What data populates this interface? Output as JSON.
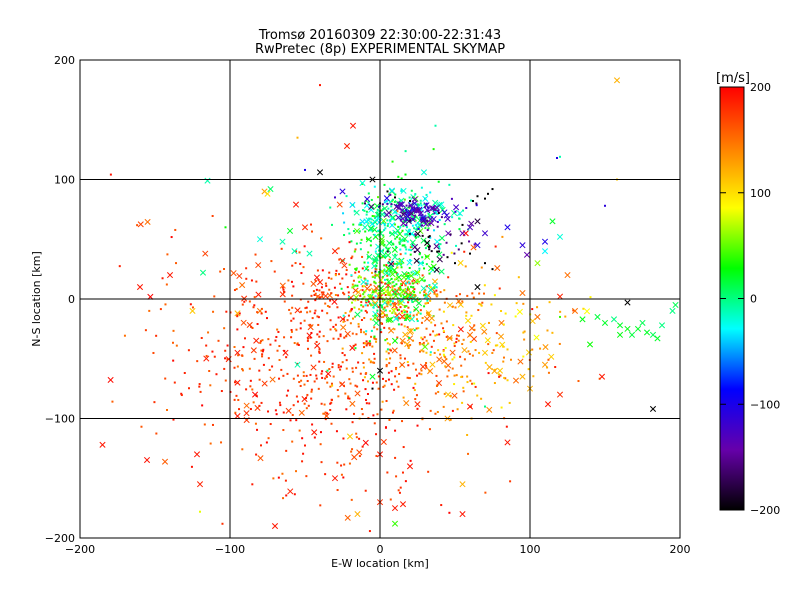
{
  "chart_data": {
    "type": "scatter",
    "title": "Tromsø 20160309 22:30:00-22:31:43",
    "subtitle": "RwPretec (8p) EXPERIMENTAL SKYMAP",
    "xlabel": "E-W location [km]",
    "ylabel": "N-S location [km]",
    "xlim": [
      -200,
      200
    ],
    "ylim": [
      -200,
      200
    ],
    "x_ticks": [
      -200,
      -100,
      0,
      100,
      200
    ],
    "y_ticks": [
      -200,
      -100,
      0,
      100,
      200
    ],
    "x_tick_labels": [
      "−200",
      "−100",
      "0",
      "100",
      "200"
    ],
    "y_tick_labels": [
      "−200",
      "−100",
      "0",
      "100",
      "200"
    ],
    "gridlines": [
      -100,
      0,
      100
    ],
    "grid": true,
    "markers": [
      "cross",
      "dot"
    ],
    "colorbar": {
      "label": "[m/s]",
      "range": [
        -200,
        200
      ],
      "ticks": [
        200,
        100,
        0,
        -100,
        -200
      ],
      "tick_labels": [
        "200",
        "100",
        "0",
        "−100",
        "−200"
      ],
      "colors": [
        "#000000",
        "#6600aa",
        "#0000ff",
        "#00ffff",
        "#00ff00",
        "#ffff00",
        "#ff7f00",
        "#ff0000"
      ]
    },
    "points": [
      {
        "x": -40,
        "y": 179,
        "v": 190,
        "m": "dot"
      },
      {
        "x": -18,
        "y": 145,
        "v": 190,
        "m": "cross"
      },
      {
        "x": -22,
        "y": 128,
        "v": 185,
        "m": "cross"
      },
      {
        "x": -55,
        "y": 135,
        "v": 120,
        "m": "dot"
      },
      {
        "x": 158,
        "y": 183,
        "v": 120,
        "m": "cross"
      },
      {
        "x": 37,
        "y": 145,
        "v": -10,
        "m": "dot"
      },
      {
        "x": 120,
        "y": 119,
        "v": -10,
        "m": "dot"
      },
      {
        "x": 118,
        "y": 118,
        "v": -100,
        "m": "dot"
      },
      {
        "x": 158,
        "y": 100,
        "v": 110,
        "m": "dot"
      },
      {
        "x": -50,
        "y": 108,
        "v": -100,
        "m": "dot"
      },
      {
        "x": -40,
        "y": 106,
        "v": -200,
        "m": "cross"
      },
      {
        "x": -5,
        "y": 100,
        "v": -200,
        "m": "cross"
      },
      {
        "x": -115,
        "y": 99,
        "v": -10,
        "m": "cross"
      },
      {
        "x": -77,
        "y": 90,
        "v": 130,
        "m": "cross"
      },
      {
        "x": -75,
        "y": 88,
        "v": 100,
        "m": "cross"
      },
      {
        "x": -73,
        "y": 92,
        "v": 5,
        "m": "cross"
      },
      {
        "x": 150,
        "y": 78,
        "v": -110,
        "m": "dot"
      },
      {
        "x": -103,
        "y": 60,
        "v": 30,
        "m": "dot"
      },
      {
        "x": -50,
        "y": 60,
        "v": 180,
        "m": "cross"
      },
      {
        "x": -56,
        "y": 79,
        "v": 190,
        "m": "cross"
      },
      {
        "x": -57,
        "y": 40,
        "v": -10,
        "m": "cross"
      },
      {
        "x": -47,
        "y": 38,
        "v": -10,
        "m": "cross"
      },
      {
        "x": -30,
        "y": 40,
        "v": 185,
        "m": "cross"
      },
      {
        "x": -25,
        "y": 32,
        "v": 185,
        "m": "cross"
      },
      {
        "x": -60,
        "y": 57,
        "v": 20,
        "m": "cross"
      },
      {
        "x": -65,
        "y": 48,
        "v": -10,
        "m": "cross"
      },
      {
        "x": -80,
        "y": 50,
        "v": -20,
        "m": "cross"
      },
      {
        "x": -160,
        "y": 10,
        "v": 190,
        "m": "cross"
      },
      {
        "x": -140,
        "y": 20,
        "v": 190,
        "m": "cross"
      },
      {
        "x": -118,
        "y": 22,
        "v": 0,
        "m": "cross"
      },
      {
        "x": -125,
        "y": -10,
        "v": 110,
        "m": "cross"
      },
      {
        "x": -185,
        "y": -122,
        "v": 190,
        "m": "cross"
      },
      {
        "x": -122,
        "y": -130,
        "v": 190,
        "m": "cross"
      },
      {
        "x": -120,
        "y": -155,
        "v": 185,
        "m": "cross"
      },
      {
        "x": -95,
        "y": -98,
        "v": 190,
        "m": "cross"
      },
      {
        "x": -95,
        "y": -70,
        "v": 190,
        "m": "cross"
      },
      {
        "x": -95,
        "y": -45,
        "v": 190,
        "m": "cross"
      },
      {
        "x": -95,
        "y": -12,
        "v": 120,
        "m": "cross"
      },
      {
        "x": -80,
        "y": -10,
        "v": 150,
        "m": "cross"
      },
      {
        "x": -63,
        "y": -45,
        "v": 190,
        "m": "cross"
      },
      {
        "x": -70,
        "y": -190,
        "v": 190,
        "m": "cross"
      },
      {
        "x": -30,
        "y": -150,
        "v": 190,
        "m": "cross"
      },
      {
        "x": -15,
        "y": -180,
        "v": 120,
        "m": "cross"
      },
      {
        "x": 0,
        "y": -170,
        "v": 180,
        "m": "cross"
      },
      {
        "x": 10,
        "y": -175,
        "v": 190,
        "m": "cross"
      },
      {
        "x": 55,
        "y": -155,
        "v": 120,
        "m": "cross"
      },
      {
        "x": 55,
        "y": -180,
        "v": 190,
        "m": "cross"
      },
      {
        "x": 0,
        "y": -130,
        "v": 190,
        "m": "cross"
      },
      {
        "x": 20,
        "y": -140,
        "v": 190,
        "m": "cross"
      },
      {
        "x": -20,
        "y": -115,
        "v": 110,
        "m": "cross"
      },
      {
        "x": 25,
        "y": -88,
        "v": 180,
        "m": "cross"
      },
      {
        "x": 45,
        "y": -100,
        "v": 130,
        "m": "cross"
      },
      {
        "x": 60,
        "y": -90,
        "v": 190,
        "m": "cross"
      },
      {
        "x": 85,
        "y": -120,
        "v": 190,
        "m": "cross"
      },
      {
        "x": 100,
        "y": -75,
        "v": 120,
        "m": "cross"
      },
      {
        "x": 112,
        "y": -88,
        "v": 190,
        "m": "cross"
      },
      {
        "x": 120,
        "y": -80,
        "v": 180,
        "m": "cross"
      },
      {
        "x": 148,
        "y": -65,
        "v": 190,
        "m": "cross"
      },
      {
        "x": 110,
        "y": -55,
        "v": 130,
        "m": "cross"
      },
      {
        "x": 95,
        "y": -65,
        "v": 120,
        "m": "cross"
      },
      {
        "x": 80,
        "y": -60,
        "v": 110,
        "m": "cross"
      },
      {
        "x": 70,
        "y": -45,
        "v": 110,
        "m": "cross"
      },
      {
        "x": 60,
        "y": -30,
        "v": 150,
        "m": "cross"
      },
      {
        "x": 95,
        "y": 5,
        "v": 150,
        "m": "cross"
      },
      {
        "x": 105,
        "y": -15,
        "v": 150,
        "m": "cross"
      },
      {
        "x": 120,
        "y": 2,
        "v": 185,
        "m": "cross"
      },
      {
        "x": 130,
        "y": -10,
        "v": 150,
        "m": "cross"
      },
      {
        "x": 125,
        "y": 20,
        "v": 150,
        "m": "cross"
      },
      {
        "x": 105,
        "y": 30,
        "v": 60,
        "m": "cross"
      },
      {
        "x": 115,
        "y": 65,
        "v": 20,
        "m": "cross"
      },
      {
        "x": 120,
        "y": 52,
        "v": -20,
        "m": "cross"
      },
      {
        "x": 110,
        "y": 48,
        "v": -100,
        "m": "cross"
      },
      {
        "x": 95,
        "y": 45,
        "v": -110,
        "m": "cross"
      },
      {
        "x": 98,
        "y": 37,
        "v": -140,
        "m": "cross"
      },
      {
        "x": 85,
        "y": 60,
        "v": -100,
        "m": "cross"
      },
      {
        "x": 110,
        "y": 40,
        "v": -30,
        "m": "cross"
      },
      {
        "x": 70,
        "y": 55,
        "v": -120,
        "m": "cross"
      },
      {
        "x": 65,
        "y": 45,
        "v": -110,
        "m": "cross"
      },
      {
        "x": 60,
        "y": 60,
        "v": -130,
        "m": "cross"
      },
      {
        "x": 55,
        "y": 55,
        "v": -140,
        "m": "cross"
      },
      {
        "x": 65,
        "y": 65,
        "v": -180,
        "m": "cross"
      },
      {
        "x": 72,
        "y": 88,
        "v": -200,
        "m": "dot"
      },
      {
        "x": 75,
        "y": 92,
        "v": -200,
        "m": "dot"
      },
      {
        "x": 70,
        "y": 84,
        "v": -200,
        "m": "dot"
      },
      {
        "x": 65,
        "y": 86,
        "v": -200,
        "m": "dot"
      },
      {
        "x": 62,
        "y": 82,
        "v": -200,
        "m": "dot"
      },
      {
        "x": 55,
        "y": 62,
        "v": -200,
        "m": "dot"
      },
      {
        "x": 60,
        "y": 38,
        "v": -200,
        "m": "dot"
      },
      {
        "x": 70,
        "y": 30,
        "v": -200,
        "m": "dot"
      },
      {
        "x": 75,
        "y": 25,
        "v": -200,
        "m": "dot"
      },
      {
        "x": 65,
        "y": 10,
        "v": -200,
        "m": "cross"
      },
      {
        "x": 50,
        "y": 30,
        "v": -200,
        "m": "dot"
      },
      {
        "x": 45,
        "y": 35,
        "v": -200,
        "m": "dot"
      },
      {
        "x": 20,
        "y": 82,
        "v": -200,
        "m": "dot"
      },
      {
        "x": 10,
        "y": 85,
        "v": -200,
        "m": "dot"
      },
      {
        "x": 0,
        "y": 80,
        "v": -180,
        "m": "dot"
      },
      {
        "x": 5,
        "y": 90,
        "v": -200,
        "m": "dot"
      },
      {
        "x": -10,
        "y": 80,
        "v": -170,
        "m": "dot"
      },
      {
        "x": -25,
        "y": 90,
        "v": -110,
        "m": "cross"
      },
      {
        "x": -30,
        "y": 85,
        "v": -120,
        "m": "dot"
      },
      {
        "x": 165,
        "y": -3,
        "v": -200,
        "m": "cross"
      },
      {
        "x": 182,
        "y": -92,
        "v": -200,
        "m": "cross"
      },
      {
        "x": 0,
        "y": -60,
        "v": -200,
        "m": "cross"
      },
      {
        "x": -5,
        "y": -75,
        "v": -200,
        "m": "dot"
      },
      {
        "x": -55,
        "y": -55,
        "v": -10,
        "m": "cross"
      },
      {
        "x": -35,
        "y": -60,
        "v": 10,
        "m": "dot"
      },
      {
        "x": 195,
        "y": -10,
        "v": 0,
        "m": "cross"
      },
      {
        "x": 197,
        "y": -5,
        "v": 10,
        "m": "cross"
      },
      {
        "x": 188,
        "y": -22,
        "v": 0,
        "m": "cross"
      },
      {
        "x": 182,
        "y": -30,
        "v": 10,
        "m": "cross"
      },
      {
        "x": 178,
        "y": -28,
        "v": 20,
        "m": "cross"
      },
      {
        "x": 172,
        "y": -25,
        "v": 20,
        "m": "cross"
      },
      {
        "x": 165,
        "y": -25,
        "v": 25,
        "m": "cross"
      },
      {
        "x": 160,
        "y": -22,
        "v": 20,
        "m": "cross"
      },
      {
        "x": 150,
        "y": -20,
        "v": 20,
        "m": "cross"
      },
      {
        "x": 145,
        "y": -15,
        "v": 15,
        "m": "cross"
      },
      {
        "x": 135,
        "y": -17,
        "v": 25,
        "m": "cross"
      },
      {
        "x": 140,
        "y": -38,
        "v": 30,
        "m": "cross"
      },
      {
        "x": 185,
        "y": -33,
        "v": 20,
        "m": "cross"
      },
      {
        "x": 175,
        "y": -20,
        "v": 10,
        "m": "cross"
      },
      {
        "x": 168,
        "y": -30,
        "v": 15,
        "m": "cross"
      },
      {
        "x": 156,
        "y": -17,
        "v": 0,
        "m": "cross"
      },
      {
        "x": 160,
        "y": -30,
        "v": 25,
        "m": "cross"
      },
      {
        "x": -120,
        "y": -178,
        "v": 80,
        "m": "dot"
      },
      {
        "x": 10,
        "y": -188,
        "v": 40,
        "m": "cross"
      },
      {
        "x": -5,
        "y": -65,
        "v": 20,
        "m": "cross"
      },
      {
        "x": 10,
        "y": -35,
        "v": 30,
        "m": "cross"
      },
      {
        "x": 30,
        "y": -40,
        "v": 50,
        "m": "cross"
      },
      {
        "x": 70,
        "y": -90,
        "v": 0,
        "m": "dot"
      },
      {
        "x": 120,
        "y": -15,
        "v": 40,
        "m": "dot"
      },
      {
        "x": -10,
        "y": 60,
        "v": -10,
        "m": "cross"
      }
    ],
    "clusters": [
      {
        "cx": -45,
        "cy": -40,
        "sx": 55,
        "sy": 45,
        "n": 500,
        "vmin": 150,
        "vmax": 200,
        "cross": 0.12
      },
      {
        "cx": -20,
        "cy": -110,
        "sx": 45,
        "sy": 45,
        "n": 130,
        "vmin": 150,
        "vmax": 200,
        "cross": 0.12
      },
      {
        "cx": -20,
        "cy": 5,
        "sx": 30,
        "sy": 15,
        "n": 110,
        "vmin": 160,
        "vmax": 200,
        "cross": 0.1
      },
      {
        "cx": 10,
        "cy": -10,
        "sx": 22,
        "sy": 18,
        "n": 140,
        "vmin": 110,
        "vmax": 170,
        "cross": 0.15
      },
      {
        "cx": 45,
        "cy": -50,
        "sx": 30,
        "sy": 25,
        "n": 160,
        "vmin": 100,
        "vmax": 170,
        "cross": 0.15
      },
      {
        "cx": 10,
        "cy": 35,
        "sx": 15,
        "sy": 30,
        "n": 380,
        "vmin": -30,
        "vmax": 50,
        "cross": 0.25
      },
      {
        "cx": 15,
        "cy": 70,
        "sx": 18,
        "sy": 10,
        "n": 160,
        "vmin": -40,
        "vmax": 20,
        "cross": 0.3
      },
      {
        "cx": 25,
        "cy": 72,
        "sx": 12,
        "sy": 6,
        "n": 90,
        "vmin": -160,
        "vmax": -100,
        "cross": 0.55
      },
      {
        "cx": 5,
        "cy": 5,
        "sx": 12,
        "sy": 10,
        "n": 90,
        "vmin": 40,
        "vmax": 80,
        "cross": 0.15
      },
      {
        "cx": 80,
        "cy": -20,
        "sx": 30,
        "sy": 25,
        "n": 80,
        "vmin": 80,
        "vmax": 160,
        "cross": 0.2
      },
      {
        "cx": 40,
        "cy": 50,
        "sx": 15,
        "sy": 15,
        "n": 40,
        "vmin": -200,
        "vmax": -130,
        "cross": 0.2
      }
    ]
  }
}
